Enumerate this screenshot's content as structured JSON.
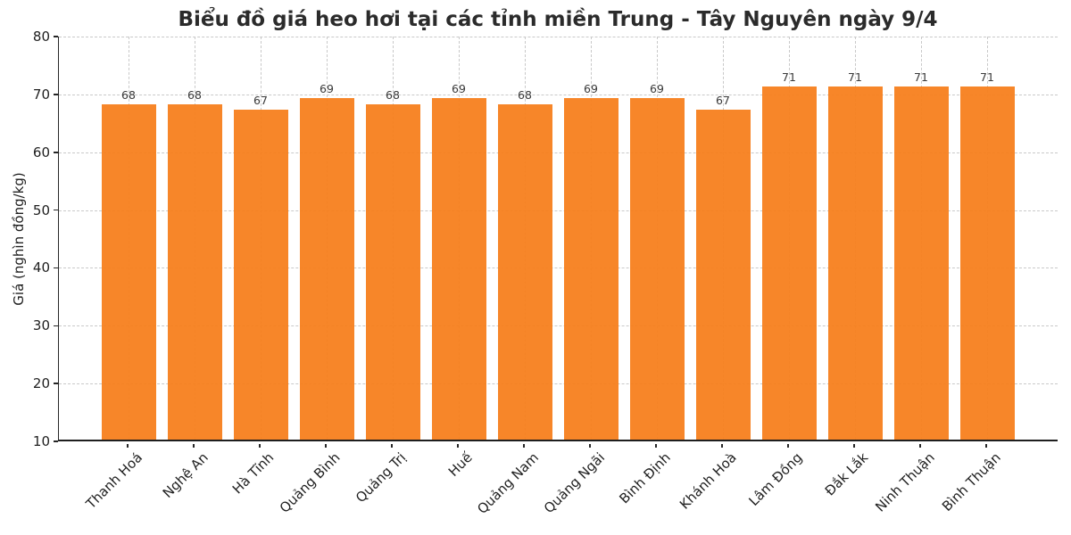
{
  "chart_data": {
    "type": "bar",
    "title": "Biểu đồ giá heo hơi tại các tỉnh miền Trung - Tây Nguyên ngày 9/4",
    "ylabel": "Giá (nghìn đồng/kg)",
    "xlabel": "",
    "categories": [
      "Thanh Hoá",
      "Nghệ An",
      "Hà Tĩnh",
      "Quảng Bình",
      "Quảng Trị",
      "Huế",
      "Quảng Nam",
      "Quảng Ngãi",
      "Bình Định",
      "Khánh Hoà",
      "Lâm Đồng",
      "Đắk Lắk",
      "Ninh Thuận",
      "Bình Thuận"
    ],
    "values": [
      68,
      68,
      67,
      69,
      68,
      69,
      68,
      69,
      69,
      67,
      71,
      71,
      71,
      71
    ],
    "ylim": [
      10,
      80
    ],
    "yticks": [
      10,
      20,
      30,
      40,
      50,
      60,
      70,
      80
    ],
    "bar_color": "#F7801E",
    "grid": true,
    "grid_style": "dashed",
    "grid_color": "#c9c9c9",
    "bar_value_labels": true,
    "x_label_rotation_deg": 45,
    "legend": "none"
  }
}
